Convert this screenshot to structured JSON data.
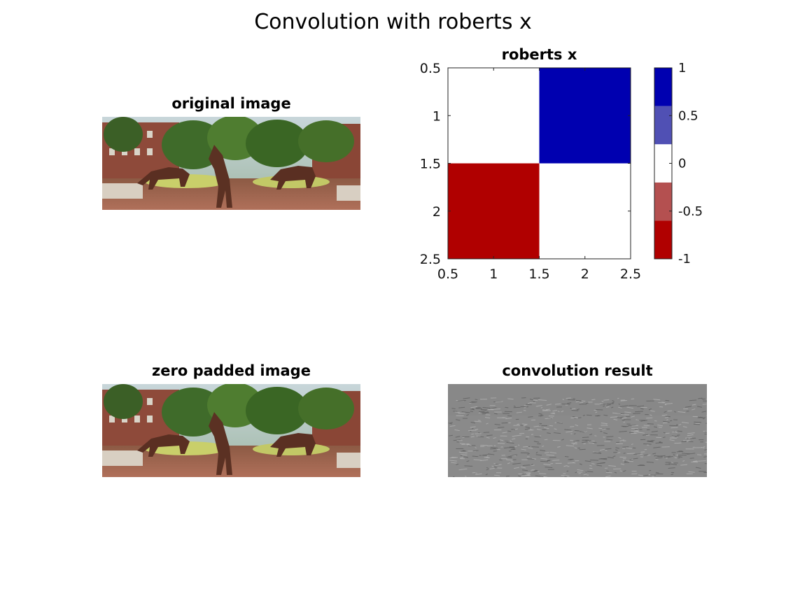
{
  "suptitle": "Convolution with roberts x",
  "panels": {
    "original": {
      "title": "original image"
    },
    "kernel": {
      "title": "roberts x"
    },
    "padded": {
      "title": "zero padded image"
    },
    "result": {
      "title": "convolution result"
    }
  },
  "chart_data": {
    "type": "heatmap",
    "title": "roberts x",
    "xlabel": "",
    "ylabel": "",
    "xlim": [
      0.5,
      2.5
    ],
    "ylim": [
      0.5,
      2.5
    ],
    "x_ticks": [
      "0.5",
      "1",
      "1.5",
      "2",
      "2.5"
    ],
    "y_ticks": [
      "0.5",
      "1",
      "1.5",
      "2",
      "2.5"
    ],
    "x_tick_values": [
      0.5,
      1,
      1.5,
      2,
      2.5
    ],
    "y_tick_values": [
      0.5,
      1,
      1.5,
      2,
      2.5
    ],
    "matrix": [
      [
        0,
        1
      ],
      [
        -1,
        0
      ]
    ],
    "colorbar": {
      "ticks": [
        "1",
        "0.5",
        "0",
        "-0.5",
        "-1"
      ],
      "tick_values": [
        1,
        0.5,
        0,
        -0.5,
        -1
      ],
      "range": [
        -1,
        1
      ],
      "levels": [
        {
          "from": -1.0,
          "to": -0.6,
          "color": "#b00000"
        },
        {
          "from": -0.6,
          "to": -0.2,
          "color": "#b45050"
        },
        {
          "from": -0.2,
          "to": 0.2,
          "color": "#ffffff"
        },
        {
          "from": 0.2,
          "to": 0.6,
          "color": "#5050b4"
        },
        {
          "from": 0.6,
          "to": 1.0,
          "color": "#0000b0"
        }
      ]
    }
  }
}
